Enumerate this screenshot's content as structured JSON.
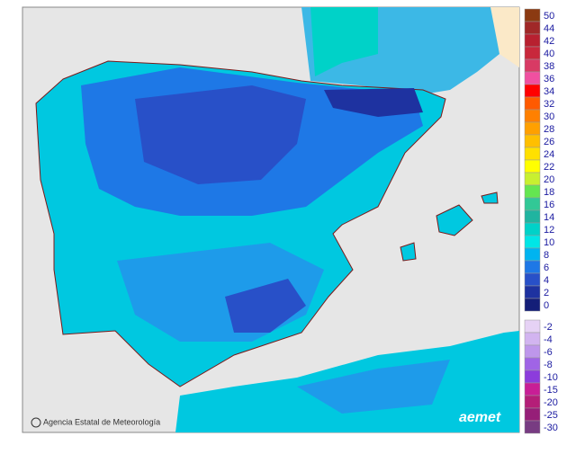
{
  "credit": "Agencia Estatal de Meteorología",
  "logo": "aemet",
  "legend": [
    {
      "label": "50",
      "color": "#8b3a12"
    },
    {
      "label": "44",
      "color": "#a02828"
    },
    {
      "label": "42",
      "color": "#b82030"
    },
    {
      "label": "40",
      "color": "#c8283c"
    },
    {
      "label": "38",
      "color": "#d83a64"
    },
    {
      "label": "36",
      "color": "#f050a0"
    },
    {
      "label": "34",
      "color": "#ff0000"
    },
    {
      "label": "32",
      "color": "#ff5a00"
    },
    {
      "label": "30",
      "color": "#ff8000"
    },
    {
      "label": "28",
      "color": "#ffa000"
    },
    {
      "label": "26",
      "color": "#ffbf00"
    },
    {
      "label": "24",
      "color": "#ffe000"
    },
    {
      "label": "22",
      "color": "#ffff00"
    },
    {
      "label": "20",
      "color": "#c8f030"
    },
    {
      "label": "18",
      "color": "#64e650"
    },
    {
      "label": "16",
      "color": "#32c896"
    },
    {
      "label": "14",
      "color": "#20b4a0"
    },
    {
      "label": "12",
      "color": "#00d2c8"
    },
    {
      "label": "10",
      "color": "#00e6e6"
    },
    {
      "label": "8",
      "color": "#00b4f0"
    },
    {
      "label": "6",
      "color": "#1e78e6"
    },
    {
      "label": "4",
      "color": "#2850c8"
    },
    {
      "label": "2",
      "color": "#1e32a0"
    },
    {
      "label": "0",
      "color": "#141e78"
    },
    {
      "label": "-2",
      "color": "#e6d2f5"
    },
    {
      "label": "-4",
      "color": "#d2b4f0"
    },
    {
      "label": "-6",
      "color": "#be96eb"
    },
    {
      "label": "-8",
      "color": "#a064e6"
    },
    {
      "label": "-10",
      "color": "#8c3cdc"
    },
    {
      "label": "-15",
      "color": "#c81e96"
    },
    {
      "label": "-20",
      "color": "#b41e78"
    },
    {
      "label": "-25",
      "color": "#961e78"
    },
    {
      "label": "-30",
      "color": "#783c82"
    }
  ]
}
